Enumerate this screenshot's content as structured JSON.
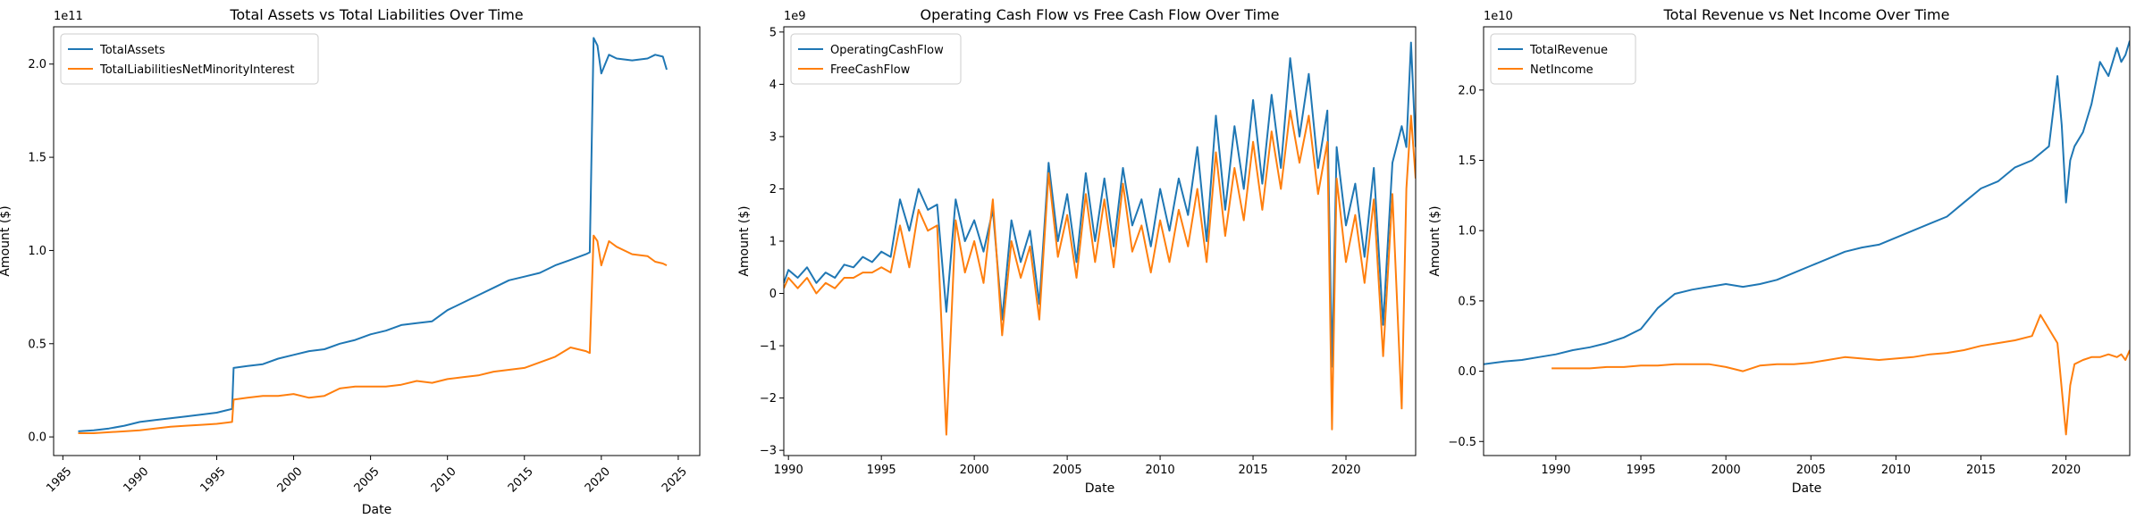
{
  "colors": {
    "series1": "#1f77b4",
    "series2": "#ff7f0e",
    "axis": "#000000",
    "background": "#ffffff"
  },
  "chart_data": [
    {
      "type": "line",
      "title": "Total Assets vs Total Liabilities Over Time",
      "xlabel": "Date",
      "ylabel": "Amount ($)",
      "y_offset_label": "1e11",
      "xlim": [
        1984.4,
        2026.4
      ],
      "ylim": [
        -0.1,
        2.2
      ],
      "x_tick_rotation": 45,
      "xticks": [
        1985,
        1990,
        1995,
        2000,
        2005,
        2010,
        2015,
        2020,
        2025
      ],
      "xtick_labels": [
        "1985",
        "1990",
        "1995",
        "2000",
        "2005",
        "2010",
        "2015",
        "2020",
        "2025"
      ],
      "yticks": [
        0.0,
        0.5,
        1.0,
        1.5,
        2.0
      ],
      "ytick_labels": [
        "0.0",
        "0.5",
        "1.0",
        "1.5",
        "2.0"
      ],
      "legend_position": "top-left",
      "grid": false,
      "series": [
        {
          "name": "TotalAssets",
          "x": [
            1986.0,
            1987.0,
            1988.0,
            1989.0,
            1990.0,
            1991.0,
            1992.0,
            1993.0,
            1994.0,
            1995.0,
            1996.0,
            1996.1,
            1997.0,
            1998.0,
            1999.0,
            2000.0,
            2001.0,
            2002.0,
            2003.0,
            2004.0,
            2005.0,
            2006.0,
            2007.0,
            2008.0,
            2009.0,
            2010.0,
            2011.0,
            2012.0,
            2013.0,
            2014.0,
            2015.0,
            2016.0,
            2017.0,
            2018.0,
            2019.0,
            2019.25,
            2019.5,
            2019.75,
            2020.0,
            2020.5,
            2021.0,
            2022.0,
            2023.0,
            2023.5,
            2024.0,
            2024.25
          ],
          "values": [
            0.03,
            0.035,
            0.045,
            0.06,
            0.08,
            0.09,
            0.1,
            0.11,
            0.12,
            0.13,
            0.15,
            0.37,
            0.38,
            0.39,
            0.42,
            0.44,
            0.46,
            0.47,
            0.5,
            0.52,
            0.55,
            0.57,
            0.6,
            0.61,
            0.62,
            0.68,
            0.72,
            0.76,
            0.8,
            0.84,
            0.86,
            0.88,
            0.92,
            0.95,
            0.98,
            0.99,
            2.14,
            2.1,
            1.95,
            2.05,
            2.03,
            2.02,
            2.03,
            2.05,
            2.04,
            1.97
          ]
        },
        {
          "name": "TotalLiabilitiesNetMinorityInterest",
          "x": [
            1986.0,
            1987.0,
            1988.0,
            1989.0,
            1990.0,
            1991.0,
            1992.0,
            1993.0,
            1994.0,
            1995.0,
            1996.0,
            1996.1,
            1997.0,
            1998.0,
            1999.0,
            2000.0,
            2001.0,
            2002.0,
            2003.0,
            2004.0,
            2005.0,
            2006.0,
            2007.0,
            2008.0,
            2009.0,
            2010.0,
            2011.0,
            2012.0,
            2013.0,
            2014.0,
            2015.0,
            2016.0,
            2017.0,
            2018.0,
            2019.0,
            2019.25,
            2019.5,
            2019.75,
            2020.0,
            2020.5,
            2021.0,
            2022.0,
            2023.0,
            2023.5,
            2024.0,
            2024.25
          ],
          "values": [
            0.02,
            0.02,
            0.025,
            0.03,
            0.035,
            0.045,
            0.055,
            0.06,
            0.065,
            0.07,
            0.08,
            0.2,
            0.21,
            0.22,
            0.22,
            0.23,
            0.21,
            0.22,
            0.26,
            0.27,
            0.27,
            0.27,
            0.28,
            0.3,
            0.29,
            0.31,
            0.32,
            0.33,
            0.35,
            0.36,
            0.37,
            0.4,
            0.43,
            0.48,
            0.46,
            0.45,
            1.08,
            1.05,
            0.92,
            1.05,
            1.02,
            0.98,
            0.97,
            0.94,
            0.93,
            0.92
          ]
        }
      ]
    },
    {
      "type": "line",
      "title": "Operating Cash Flow vs Free Cash Flow Over Time",
      "xlabel": "Date",
      "ylabel": "Amount ($)",
      "y_offset_label": "1e9",
      "xlim": [
        1989.75,
        2023.75
      ],
      "ylim": [
        -3.1,
        5.1
      ],
      "x_tick_rotation": 0,
      "xticks": [
        1990,
        1995,
        2000,
        2005,
        2010,
        2015,
        2020
      ],
      "xtick_labels": [
        "1990",
        "1995",
        "2000",
        "2005",
        "2010",
        "2015",
        "2020"
      ],
      "yticks": [
        -3,
        -2,
        -1,
        0,
        1,
        2,
        3,
        4,
        5
      ],
      "ytick_labels": [
        "−3",
        "−2",
        "−1",
        "0",
        "1",
        "2",
        "3",
        "4",
        "5"
      ],
      "legend_position": "top-left",
      "grid": false,
      "series": [
        {
          "name": "OperatingCashFlow",
          "x": [
            1989.75,
            1990.0,
            1990.5,
            1991.0,
            1991.5,
            1992.0,
            1992.5,
            1993.0,
            1993.5,
            1994.0,
            1994.5,
            1995.0,
            1995.5,
            1996.0,
            1996.5,
            1997.0,
            1997.5,
            1998.0,
            1998.5,
            1999.0,
            1999.5,
            2000.0,
            2000.5,
            2001.0,
            2001.5,
            2002.0,
            2002.5,
            2003.0,
            2003.5,
            2004.0,
            2004.5,
            2005.0,
            2005.5,
            2006.0,
            2006.5,
            2007.0,
            2007.5,
            2008.0,
            2008.5,
            2009.0,
            2009.5,
            2010.0,
            2010.5,
            2011.0,
            2011.5,
            2012.0,
            2012.5,
            2013.0,
            2013.5,
            2014.0,
            2014.5,
            2015.0,
            2015.5,
            2016.0,
            2016.5,
            2017.0,
            2017.5,
            2018.0,
            2018.5,
            2019.0,
            2019.25,
            2019.5,
            2020.0,
            2020.5,
            2021.0,
            2021.5,
            2022.0,
            2022.5,
            2023.0,
            2023.25,
            2023.5,
            2023.75
          ],
          "values": [
            0.2,
            0.45,
            0.3,
            0.5,
            0.2,
            0.4,
            0.3,
            0.55,
            0.5,
            0.7,
            0.6,
            0.8,
            0.7,
            1.8,
            1.2,
            2.0,
            1.6,
            1.7,
            -0.35,
            1.8,
            1.0,
            1.4,
            0.8,
            1.6,
            -0.5,
            1.4,
            0.6,
            1.2,
            -0.2,
            2.5,
            1.0,
            1.9,
            0.6,
            2.3,
            1.0,
            2.2,
            0.9,
            2.4,
            1.3,
            1.8,
            0.9,
            2.0,
            1.2,
            2.2,
            1.5,
            2.8,
            1.0,
            3.4,
            1.6,
            3.2,
            2.0,
            3.7,
            2.1,
            3.8,
            2.4,
            4.5,
            3.0,
            4.2,
            2.4,
            3.5,
            -1.4,
            2.8,
            1.3,
            2.1,
            0.7,
            2.4,
            -0.6,
            2.5,
            3.2,
            2.8,
            4.8,
            2.8
          ]
        },
        {
          "name": "FreeCashFlow",
          "x": [
            1989.75,
            1990.0,
            1990.5,
            1991.0,
            1991.5,
            1992.0,
            1992.5,
            1993.0,
            1993.5,
            1994.0,
            1994.5,
            1995.0,
            1995.5,
            1996.0,
            1996.5,
            1997.0,
            1997.5,
            1998.0,
            1998.5,
            1999.0,
            1999.5,
            2000.0,
            2000.5,
            2001.0,
            2001.5,
            2002.0,
            2002.5,
            2003.0,
            2003.5,
            2004.0,
            2004.5,
            2005.0,
            2005.5,
            2006.0,
            2006.5,
            2007.0,
            2007.5,
            2008.0,
            2008.5,
            2009.0,
            2009.5,
            2010.0,
            2010.5,
            2011.0,
            2011.5,
            2012.0,
            2012.5,
            2013.0,
            2013.5,
            2014.0,
            2014.5,
            2015.0,
            2015.5,
            2016.0,
            2016.5,
            2017.0,
            2017.5,
            2018.0,
            2018.5,
            2019.0,
            2019.25,
            2019.5,
            2020.0,
            2020.5,
            2021.0,
            2021.5,
            2022.0,
            2022.5,
            2023.0,
            2023.25,
            2023.5,
            2023.75
          ],
          "values": [
            0.1,
            0.3,
            0.1,
            0.3,
            0.0,
            0.2,
            0.1,
            0.3,
            0.3,
            0.4,
            0.4,
            0.5,
            0.4,
            1.3,
            0.5,
            1.6,
            1.2,
            1.3,
            -2.7,
            1.4,
            0.4,
            1.0,
            0.2,
            1.8,
            -0.8,
            1.0,
            0.3,
            0.9,
            -0.5,
            2.3,
            0.7,
            1.5,
            0.3,
            1.9,
            0.6,
            1.8,
            0.5,
            2.1,
            0.8,
            1.3,
            0.4,
            1.4,
            0.6,
            1.6,
            0.9,
            2.0,
            0.6,
            2.7,
            1.1,
            2.4,
            1.4,
            2.9,
            1.6,
            3.1,
            2.0,
            3.5,
            2.5,
            3.4,
            1.9,
            2.9,
            -2.6,
            2.2,
            0.6,
            1.5,
            0.2,
            1.8,
            -1.2,
            1.9,
            -2.2,
            2.0,
            3.4,
            2.2
          ]
        }
      ]
    },
    {
      "type": "line",
      "title": "Total Revenue vs Net Income Over Time",
      "xlabel": "Date",
      "ylabel": "Amount ($)",
      "y_offset_label": "1e10",
      "xlim": [
        1985.75,
        2023.75
      ],
      "ylim": [
        -0.6,
        2.45
      ],
      "x_tick_rotation": 0,
      "xticks": [
        1990,
        1995,
        2000,
        2005,
        2010,
        2015,
        2020
      ],
      "xtick_labels": [
        "1990",
        "1995",
        "2000",
        "2005",
        "2010",
        "2015",
        "2020"
      ],
      "yticks": [
        -0.5,
        0.0,
        0.5,
        1.0,
        1.5,
        2.0
      ],
      "ytick_labels": [
        "−0.5",
        "0.0",
        "0.5",
        "1.0",
        "1.5",
        "2.0"
      ],
      "legend_position": "top-left",
      "grid": false,
      "series": [
        {
          "name": "TotalRevenue",
          "x": [
            1985.75,
            1987.0,
            1988.0,
            1989.0,
            1990.0,
            1991.0,
            1992.0,
            1993.0,
            1994.0,
            1995.0,
            1996.0,
            1997.0,
            1998.0,
            1999.0,
            2000.0,
            2001.0,
            2002.0,
            2003.0,
            2004.0,
            2005.0,
            2006.0,
            2007.0,
            2008.0,
            2009.0,
            2010.0,
            2011.0,
            2012.0,
            2013.0,
            2014.0,
            2015.0,
            2016.0,
            2017.0,
            2018.0,
            2019.0,
            2019.5,
            2019.75,
            2020.0,
            2020.25,
            2020.5,
            2021.0,
            2021.5,
            2022.0,
            2022.5,
            2023.0,
            2023.25,
            2023.5,
            2023.75
          ],
          "values": [
            0.05,
            0.07,
            0.08,
            0.1,
            0.12,
            0.15,
            0.17,
            0.2,
            0.24,
            0.3,
            0.45,
            0.55,
            0.58,
            0.6,
            0.62,
            0.6,
            0.62,
            0.65,
            0.7,
            0.75,
            0.8,
            0.85,
            0.88,
            0.9,
            0.95,
            1.0,
            1.05,
            1.1,
            1.2,
            1.3,
            1.35,
            1.45,
            1.5,
            1.6,
            2.1,
            1.75,
            1.2,
            1.5,
            1.6,
            1.7,
            1.9,
            2.2,
            2.1,
            2.3,
            2.2,
            2.25,
            2.35
          ]
        },
        {
          "name": "NetIncome",
          "x": [
            1989.75,
            1991.0,
            1992.0,
            1993.0,
            1994.0,
            1995.0,
            1996.0,
            1997.0,
            1998.0,
            1999.0,
            2000.0,
            2001.0,
            2002.0,
            2003.0,
            2004.0,
            2005.0,
            2006.0,
            2007.0,
            2008.0,
            2009.0,
            2010.0,
            2011.0,
            2012.0,
            2013.0,
            2014.0,
            2015.0,
            2016.0,
            2017.0,
            2018.0,
            2018.5,
            2019.0,
            2019.5,
            2020.0,
            2020.25,
            2020.5,
            2021.0,
            2021.5,
            2022.0,
            2022.5,
            2023.0,
            2023.25,
            2023.5,
            2023.75
          ],
          "values": [
            0.02,
            0.02,
            0.02,
            0.03,
            0.03,
            0.04,
            0.04,
            0.05,
            0.05,
            0.05,
            0.03,
            0.0,
            0.04,
            0.05,
            0.05,
            0.06,
            0.08,
            0.1,
            0.09,
            0.08,
            0.09,
            0.1,
            0.12,
            0.13,
            0.15,
            0.18,
            0.2,
            0.22,
            0.25,
            0.4,
            0.3,
            0.2,
            -0.45,
            -0.1,
            0.05,
            0.08,
            0.1,
            0.1,
            0.12,
            0.1,
            0.12,
            0.08,
            0.15
          ]
        }
      ]
    }
  ]
}
